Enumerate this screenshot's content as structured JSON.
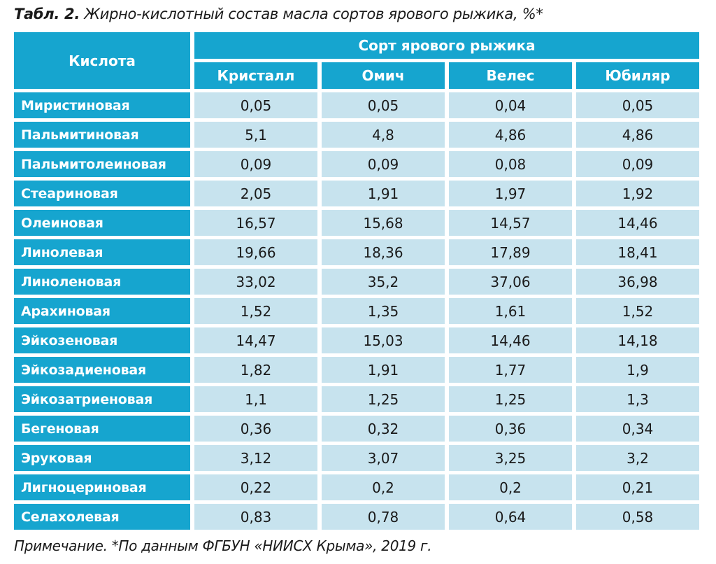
{
  "caption": {
    "label": "Табл. 2.",
    "text": " Жирно-кислотный состав масла сортов ярового рыжика, %*"
  },
  "table": {
    "acid_header": "Кислота",
    "group_header": "Сорт ярового рыжика",
    "varieties": [
      "Кристалл",
      "Омич",
      "Велес",
      "Юбиляр"
    ],
    "rows": [
      {
        "name": "Миристиновая",
        "values": [
          "0,05",
          "0,05",
          "0,04",
          "0,05"
        ]
      },
      {
        "name": "Пальмитиновая",
        "values": [
          "5,1",
          "4,8",
          "4,86",
          "4,86"
        ]
      },
      {
        "name": "Пальмитолеиновая",
        "values": [
          "0,09",
          "0,09",
          "0,08",
          "0,09"
        ]
      },
      {
        "name": "Стеариновая",
        "values": [
          "2,05",
          "1,91",
          "1,97",
          "1,92"
        ]
      },
      {
        "name": "Олеиновая",
        "values": [
          "16,57",
          "15,68",
          "14,57",
          "14,46"
        ]
      },
      {
        "name": "Линолевая",
        "values": [
          "19,66",
          "18,36",
          "17,89",
          "18,41"
        ]
      },
      {
        "name": "Линоленовая",
        "values": [
          "33,02",
          "35,2",
          "37,06",
          "36,98"
        ]
      },
      {
        "name": "Арахиновая",
        "values": [
          "1,52",
          "1,35",
          "1,61",
          "1,52"
        ]
      },
      {
        "name": "Эйкозеновая",
        "values": [
          "14,47",
          "15,03",
          "14,46",
          "14,18"
        ]
      },
      {
        "name": "Эйкозадиеновая",
        "values": [
          "1,82",
          "1,91",
          "1,77",
          "1,9"
        ]
      },
      {
        "name": "Эйкозатриеновая",
        "values": [
          "1,1",
          "1,25",
          "1,25",
          "1,3"
        ]
      },
      {
        "name": "Бегеновая",
        "values": [
          "0,36",
          "0,32",
          "0,36",
          "0,34"
        ]
      },
      {
        "name": "Эруковая",
        "values": [
          "3,12",
          "3,07",
          "3,25",
          "3,2"
        ]
      },
      {
        "name": "Лигноцериновая",
        "values": [
          "0,22",
          "0,2",
          "0,2",
          "0,21"
        ]
      },
      {
        "name": "Селахолевая",
        "values": [
          "0,83",
          "0,78",
          "0,64",
          "0,58"
        ]
      }
    ]
  },
  "note": "Примечание. *По данным ФГБУН «НИИСХ Крыма», 2019 г.",
  "colors": {
    "header_bg": "#16a5cf",
    "cell_bg": "#c7e3ee",
    "header_text": "#ffffff",
    "cell_text": "#1a1a1a"
  }
}
